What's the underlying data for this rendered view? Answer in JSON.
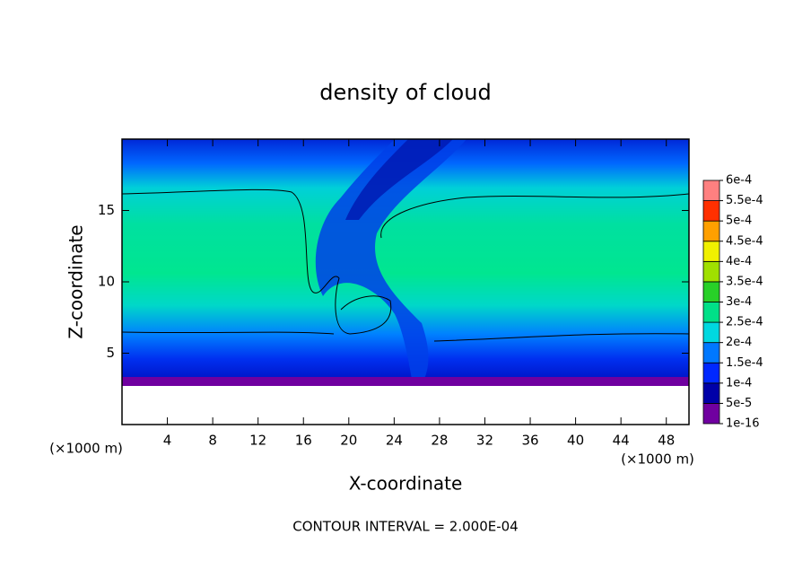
{
  "chart_data": {
    "type": "contour",
    "title": "density of cloud",
    "xlabel": "X-coordinate",
    "ylabel": "Z-coordinate",
    "unit": "(×1000 m)",
    "annotation": "CONTOUR INTERVAL = 2.000E-04",
    "xlim": [
      0,
      50
    ],
    "xticks": [
      4,
      8,
      12,
      16,
      20,
      24,
      28,
      32,
      36,
      40,
      44,
      48
    ],
    "ylim": [
      0,
      20
    ],
    "yticks": [
      5,
      10,
      15
    ],
    "colorbar": {
      "levels": [
        {
          "value": 1e-16,
          "label": "1e-16"
        },
        {
          "value": 5e-05,
          "label": "5e-5"
        },
        {
          "value": 0.0001,
          "label": "1e-4"
        },
        {
          "value": 0.00015,
          "label": "1.5e-4"
        },
        {
          "value": 0.0002,
          "label": "2e-4"
        },
        {
          "value": 0.00025,
          "label": "2.5e-4"
        },
        {
          "value": 0.0003,
          "label": "3e-4"
        },
        {
          "value": 0.00035,
          "label": "3.5e-4"
        },
        {
          "value": 0.0004,
          "label": "4e-4"
        },
        {
          "value": 0.00045,
          "label": "4.5e-4"
        },
        {
          "value": 0.0005,
          "label": "5e-4"
        },
        {
          "value": 0.00055,
          "label": "5.5e-4"
        },
        {
          "value": 0.0006,
          "label": "6e-4"
        }
      ],
      "colors": [
        "#7000a0",
        "#0000a8",
        "#0028ff",
        "#0078ff",
        "#00d8e0",
        "#00e088",
        "#28d028",
        "#a0e000",
        "#f0f000",
        "#ffa000",
        "#ff3000",
        "#ff8080"
      ]
    }
  }
}
